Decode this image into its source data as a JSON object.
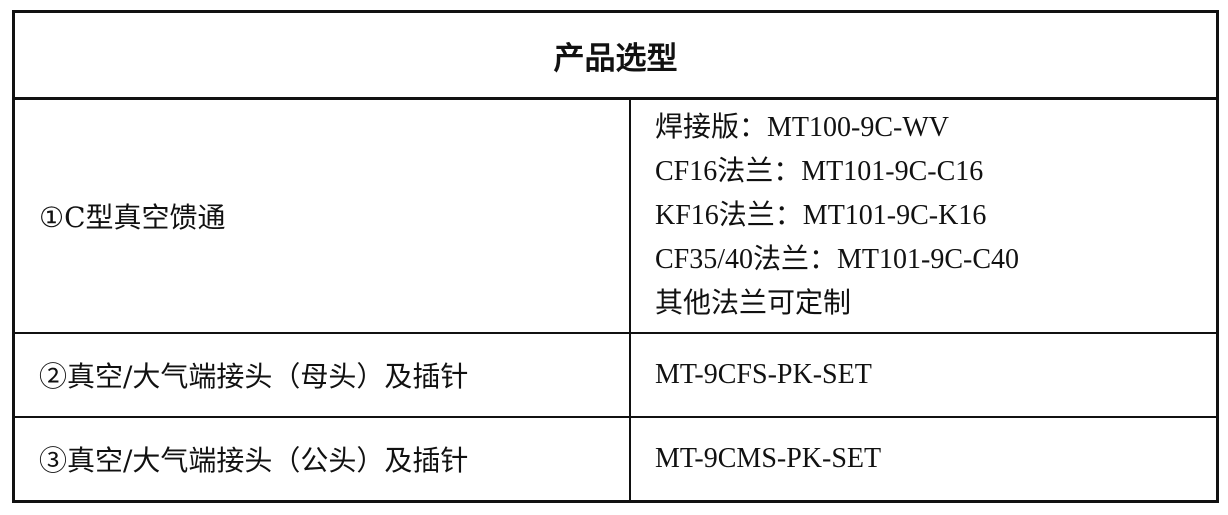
{
  "title": "产品选型",
  "rows": [
    {
      "name": "①C型真空馈通",
      "models": [
        "焊接版：MT100-9C-WV",
        "CF16法兰：MT101-9C-C16",
        "KF16法兰：MT101-9C-K16",
        "CF35/40法兰：MT101-9C-C40",
        "其他法兰可定制"
      ]
    },
    {
      "name": "②真空/大气端接头（母头）及插针",
      "models": [
        "MT-9CFS-PK-SET"
      ]
    },
    {
      "name": "③真空/大气端接头（公头）及插针",
      "models": [
        "MT-9CMS-PK-SET"
      ]
    }
  ]
}
